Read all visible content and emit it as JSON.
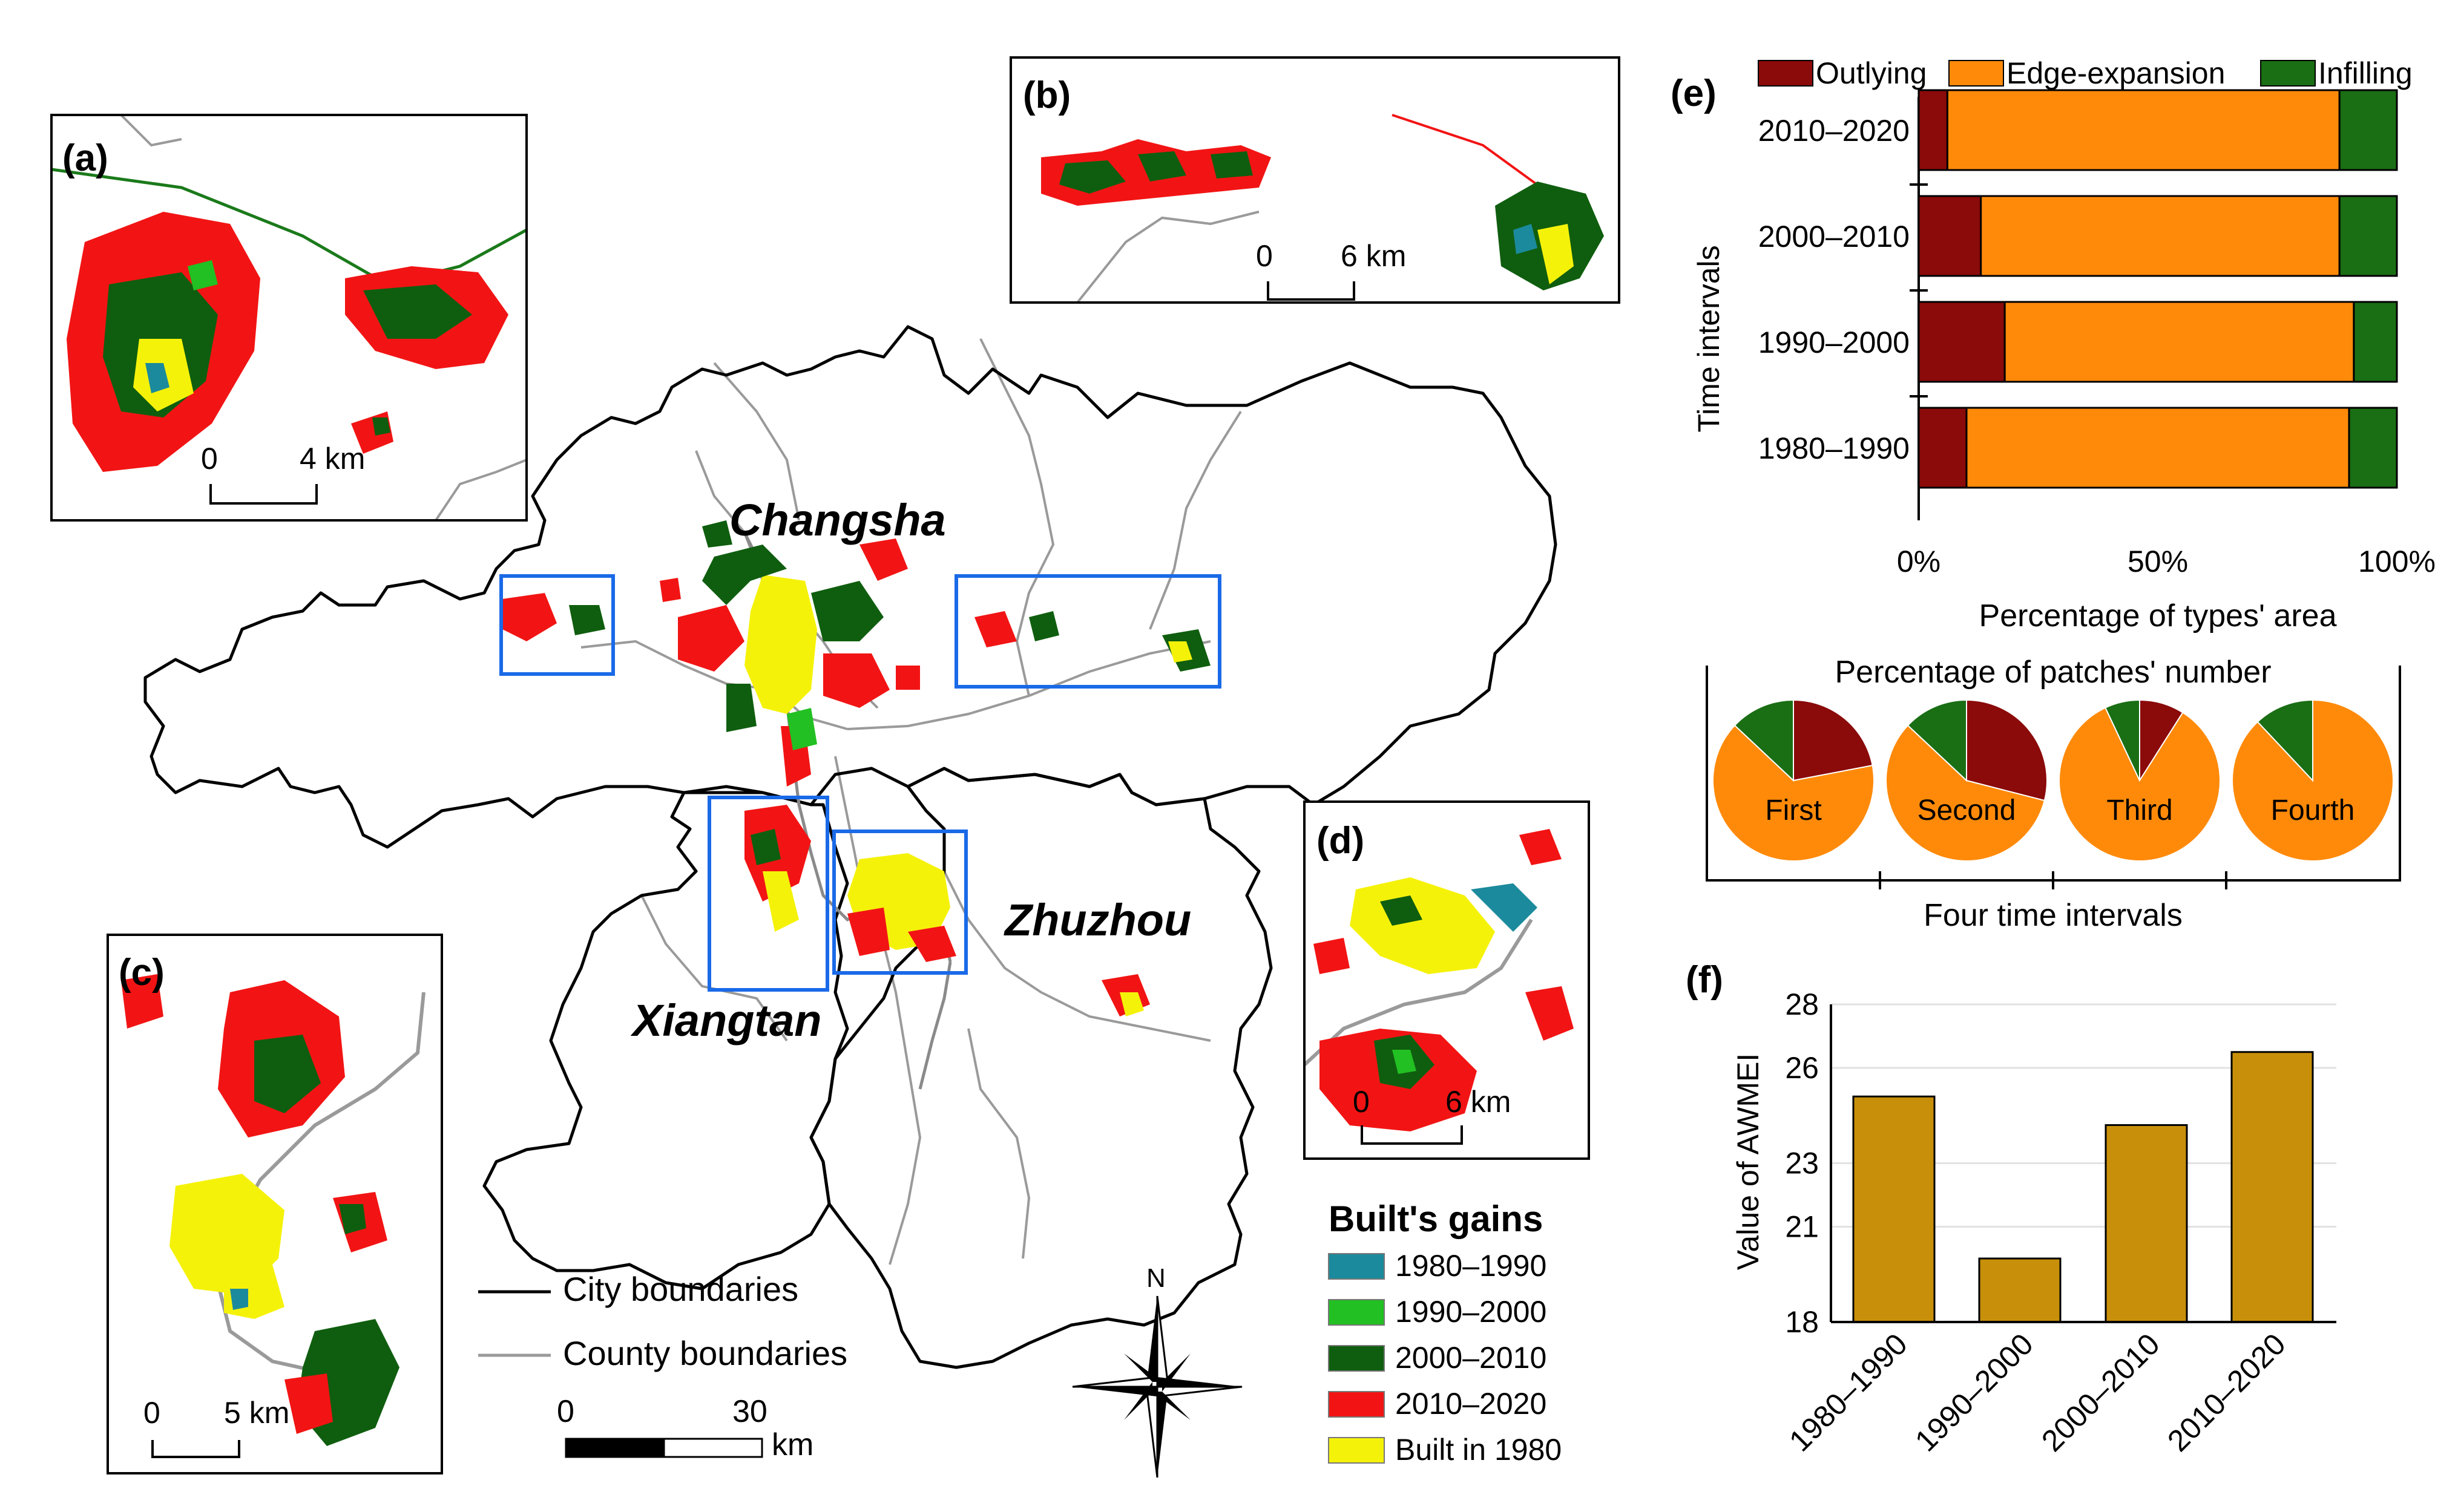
{
  "main_map": {
    "cities": [
      "Changsha",
      "Xiangtan",
      "Zhuzhou"
    ],
    "boundary_legend": {
      "city": "City boundaries",
      "county": "County boundaries"
    },
    "scale": {
      "zero": "0",
      "max": "30",
      "unit": "km"
    },
    "north": "N",
    "gains_legend": {
      "title": "Built's gains",
      "items": [
        {
          "label": "1980–1990",
          "color": "#1b8a9c"
        },
        {
          "label": "1990–2000",
          "color": "#22c022"
        },
        {
          "label": "2000–2010",
          "color": "#0f5e0f"
        },
        {
          "label": "2010–2020",
          "color": "#f21414"
        },
        {
          "label": "Built in 1980",
          "color": "#f5f20a"
        }
      ]
    }
  },
  "insets": {
    "a": {
      "label": "(a)",
      "scale_zero": "0",
      "scale_max": "4 km"
    },
    "b": {
      "label": "(b)",
      "scale_zero": "0",
      "scale_max": "6 km"
    },
    "c": {
      "label": "(c)",
      "scale_zero": "0",
      "scale_max": "5 km"
    },
    "d": {
      "label": "(d)",
      "scale_zero": "0",
      "scale_max": "6 km"
    }
  },
  "panel_e": {
    "label": "(e)",
    "ylabel": "Time intervals",
    "xlabel": "Percentage of types' area",
    "xticks": [
      "0%",
      "50%",
      "100%"
    ]
  },
  "pies": {
    "title": "Percentage of patches' number",
    "xlabel": "Four time intervals"
  },
  "panel_f": {
    "label": "(f)",
    "ylabel": "Value of AWMEI"
  },
  "chart_data": [
    {
      "type": "bar",
      "orientation": "horizontal",
      "stacked": true,
      "categories": [
        "2010–2020",
        "2000–2010",
        "1990–2000",
        "1980–1990"
      ],
      "series": [
        {
          "name": "Outlying",
          "color": "#8b0a0a",
          "values": [
            6,
            13,
            18,
            10
          ]
        },
        {
          "name": "Edge-expansion",
          "color": "#ff8a0a",
          "values": [
            82,
            75,
            73,
            80
          ]
        },
        {
          "name": "Infilling",
          "color": "#1a6e14",
          "values": [
            12,
            12,
            9,
            10
          ]
        }
      ],
      "xlim": [
        0,
        100
      ],
      "legend": "top"
    },
    {
      "type": "pie",
      "slice_order": [
        "Outlying",
        "Edge-expansion",
        "Infilling"
      ],
      "colors": [
        "#8b0a0a",
        "#ff8a0a",
        "#1a6e14"
      ],
      "pies": [
        {
          "label": "First",
          "values": [
            22,
            65,
            13
          ]
        },
        {
          "label": "Second",
          "values": [
            29,
            58,
            13
          ]
        },
        {
          "label": "Third",
          "values": [
            9,
            84,
            7
          ]
        },
        {
          "label": "Fourth",
          "values": [
            0,
            88,
            12
          ]
        }
      ]
    },
    {
      "type": "bar",
      "categories": [
        "1980–1990",
        "1990–2000",
        "2000–2010",
        "2010–2020"
      ],
      "values": [
        25.1,
        20.0,
        24.2,
        26.5
      ],
      "color": "#c8900a",
      "ylim": [
        18,
        28
      ],
      "yticks": [
        18,
        21,
        23,
        26,
        28
      ],
      "grid": true
    }
  ]
}
